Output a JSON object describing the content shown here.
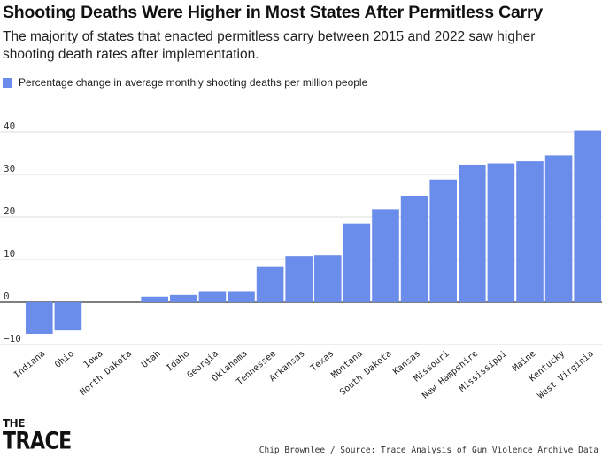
{
  "header": {
    "title": "Shooting Deaths Were Higher in Most States After Permitless Carry",
    "subtitle": "The majority of states that enacted permitless carry between 2015 and 2022 saw higher shooting death rates after implementation."
  },
  "footer": {
    "logo_line1": "THE",
    "logo_line2": "TRACE",
    "credit": "Chip Brownlee / Source: ",
    "source_link": "Trace Analysis of Gun Violence Archive Data"
  },
  "chart_data": {
    "type": "bar",
    "title": "Shooting Deaths Were Higher in Most States After Permitless Carry",
    "subtitle": "The majority of states that enacted permitless carry between 2015 and 2022 saw higher shooting death rates after implementation.",
    "xlabel": "",
    "ylabel": "",
    "categories": [
      "Indiana",
      "Ohio",
      "Iowa",
      "North Dakota",
      "Utah",
      "Idaho",
      "Georgia",
      "Oklahoma",
      "Tennessee",
      "Arkansas",
      "Texas",
      "Montana",
      "South Dakota",
      "Kansas",
      "Missouri",
      "New Hampshire",
      "Mississippi",
      "Maine",
      "Kentucky",
      "West Virginia"
    ],
    "series": [
      {
        "name": "Percentage change in average monthly shooting deaths per million people",
        "color": "#6a8cea",
        "values": [
          -7.5,
          -6.7,
          0,
          0,
          1.3,
          1.7,
          2.4,
          2.4,
          8.4,
          10.8,
          11.0,
          18.4,
          21.8,
          25.0,
          28.8,
          32.3,
          32.6,
          33.1,
          34.5,
          40.3
        ]
      }
    ],
    "ylim": [
      -10,
      40
    ],
    "yticks": [
      "40",
      "30",
      "20",
      "10",
      "0",
      "−10"
    ],
    "ytick_values": [
      40,
      30,
      20,
      10,
      0,
      -10
    ],
    "grid": true,
    "legend_position": "top-left"
  }
}
